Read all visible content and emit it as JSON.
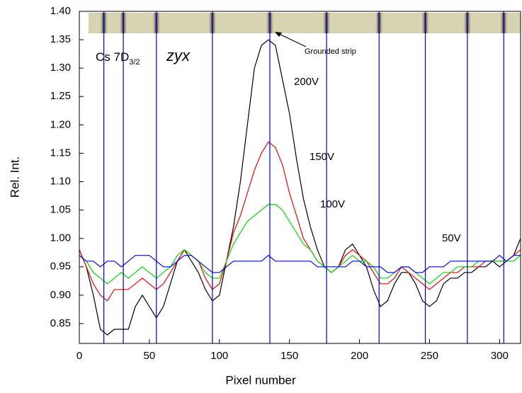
{
  "chart_data": {
    "type": "line",
    "x_label": "Pixel number",
    "y_label": "Rel. Int.",
    "annotations": {
      "sample": {
        "text": "Cs 7D",
        "sub": "3/2"
      },
      "orientation": "zyx",
      "strip": "Grounded strip"
    },
    "xlim": [
      0,
      315
    ],
    "ylim": [
      0.815,
      1.4
    ],
    "xticks": [
      0,
      50,
      100,
      150,
      200,
      250,
      300
    ],
    "yticks": [
      0.85,
      {
        "value": 0.9,
        "label": "0.90"
      },
      0.95,
      {
        "value": 1.0,
        "label": "1.00"
      },
      1.05,
      {
        "value": 1.1,
        "label": "1.10"
      },
      1.15,
      {
        "value": 1.2,
        "label": "1.20"
      },
      1.25,
      {
        "value": 1.3,
        "label": "1.30"
      },
      1.35,
      {
        "value": 1.4,
        "label": "1.40"
      }
    ],
    "vlines": [
      17.5,
      31.4,
      55,
      95,
      136,
      176.5,
      214,
      247,
      277,
      303
    ],
    "vline_color": "#0000cc",
    "x": [
      0,
      5,
      10,
      15,
      20,
      25,
      30,
      35,
      40,
      45,
      50,
      55,
      60,
      65,
      70,
      75,
      80,
      85,
      90,
      95,
      100,
      105,
      110,
      115,
      120,
      125,
      130,
      135,
      140,
      145,
      150,
      155,
      160,
      165,
      170,
      175,
      180,
      185,
      190,
      195,
      200,
      205,
      210,
      215,
      220,
      225,
      230,
      235,
      240,
      245,
      250,
      255,
      260,
      265,
      270,
      275,
      280,
      285,
      290,
      295,
      300,
      305,
      310,
      315
    ],
    "series": [
      {
        "name": "200V",
        "color": "#000000",
        "values": [
          0.98,
          0.95,
          0.9,
          0.84,
          0.83,
          0.84,
          0.84,
          0.84,
          0.88,
          0.9,
          0.88,
          0.86,
          0.88,
          0.92,
          0.96,
          0.98,
          0.96,
          0.94,
          0.91,
          0.89,
          0.9,
          0.96,
          1.02,
          1.1,
          1.2,
          1.3,
          1.34,
          1.35,
          1.34,
          1.28,
          1.22,
          1.14,
          1.07,
          1.02,
          0.98,
          0.95,
          0.94,
          0.95,
          0.98,
          0.99,
          0.97,
          0.95,
          0.91,
          0.88,
          0.89,
          0.92,
          0.94,
          0.94,
          0.92,
          0.89,
          0.88,
          0.89,
          0.92,
          0.93,
          0.93,
          0.94,
          0.94,
          0.95,
          0.95,
          0.96,
          0.95,
          0.96,
          0.97,
          1.0
        ]
      },
      {
        "name": "150V",
        "color": "#ff0000",
        "values": [
          0.98,
          0.95,
          0.92,
          0.9,
          0.89,
          0.91,
          0.91,
          0.91,
          0.92,
          0.93,
          0.92,
          0.91,
          0.92,
          0.94,
          0.96,
          0.98,
          0.97,
          0.96,
          0.93,
          0.91,
          0.92,
          0.96,
          1.01,
          1.04,
          1.08,
          1.12,
          1.15,
          1.17,
          1.16,
          1.13,
          1.08,
          1.04,
          1.0,
          0.98,
          0.96,
          0.95,
          0.94,
          0.95,
          0.97,
          0.98,
          0.97,
          0.96,
          0.94,
          0.92,
          0.92,
          0.93,
          0.95,
          0.94,
          0.93,
          0.92,
          0.91,
          0.92,
          0.93,
          0.94,
          0.94,
          0.95,
          0.95,
          0.95,
          0.96,
          0.96,
          0.96,
          0.96,
          0.97,
          0.98
        ]
      },
      {
        "name": "100V",
        "color": "#00dd00",
        "values": [
          0.97,
          0.96,
          0.94,
          0.93,
          0.92,
          0.93,
          0.94,
          0.93,
          0.94,
          0.95,
          0.94,
          0.93,
          0.94,
          0.95,
          0.97,
          0.98,
          0.97,
          0.96,
          0.94,
          0.93,
          0.93,
          0.96,
          0.99,
          1.01,
          1.03,
          1.04,
          1.05,
          1.06,
          1.06,
          1.05,
          1.03,
          1.01,
          0.99,
          0.98,
          0.96,
          0.95,
          0.94,
          0.95,
          0.96,
          0.97,
          0.96,
          0.96,
          0.95,
          0.93,
          0.93,
          0.94,
          0.95,
          0.95,
          0.94,
          0.93,
          0.92,
          0.93,
          0.94,
          0.94,
          0.95,
          0.95,
          0.95,
          0.96,
          0.96,
          0.96,
          0.96,
          0.96,
          0.96,
          0.97
        ]
      },
      {
        "name": "50V",
        "color": "#0000ff",
        "values": [
          0.97,
          0.96,
          0.96,
          0.95,
          0.96,
          0.96,
          0.95,
          0.96,
          0.97,
          0.97,
          0.97,
          0.96,
          0.95,
          0.95,
          0.96,
          0.97,
          0.97,
          0.96,
          0.95,
          0.94,
          0.94,
          0.95,
          0.96,
          0.96,
          0.96,
          0.96,
          0.96,
          0.97,
          0.96,
          0.96,
          0.96,
          0.96,
          0.96,
          0.96,
          0.95,
          0.95,
          0.95,
          0.95,
          0.95,
          0.96,
          0.96,
          0.95,
          0.95,
          0.95,
          0.94,
          0.94,
          0.95,
          0.95,
          0.94,
          0.94,
          0.95,
          0.95,
          0.95,
          0.96,
          0.96,
          0.96,
          0.96,
          0.96,
          0.96,
          0.96,
          0.97,
          0.96,
          0.97,
          0.97
        ]
      }
    ]
  }
}
